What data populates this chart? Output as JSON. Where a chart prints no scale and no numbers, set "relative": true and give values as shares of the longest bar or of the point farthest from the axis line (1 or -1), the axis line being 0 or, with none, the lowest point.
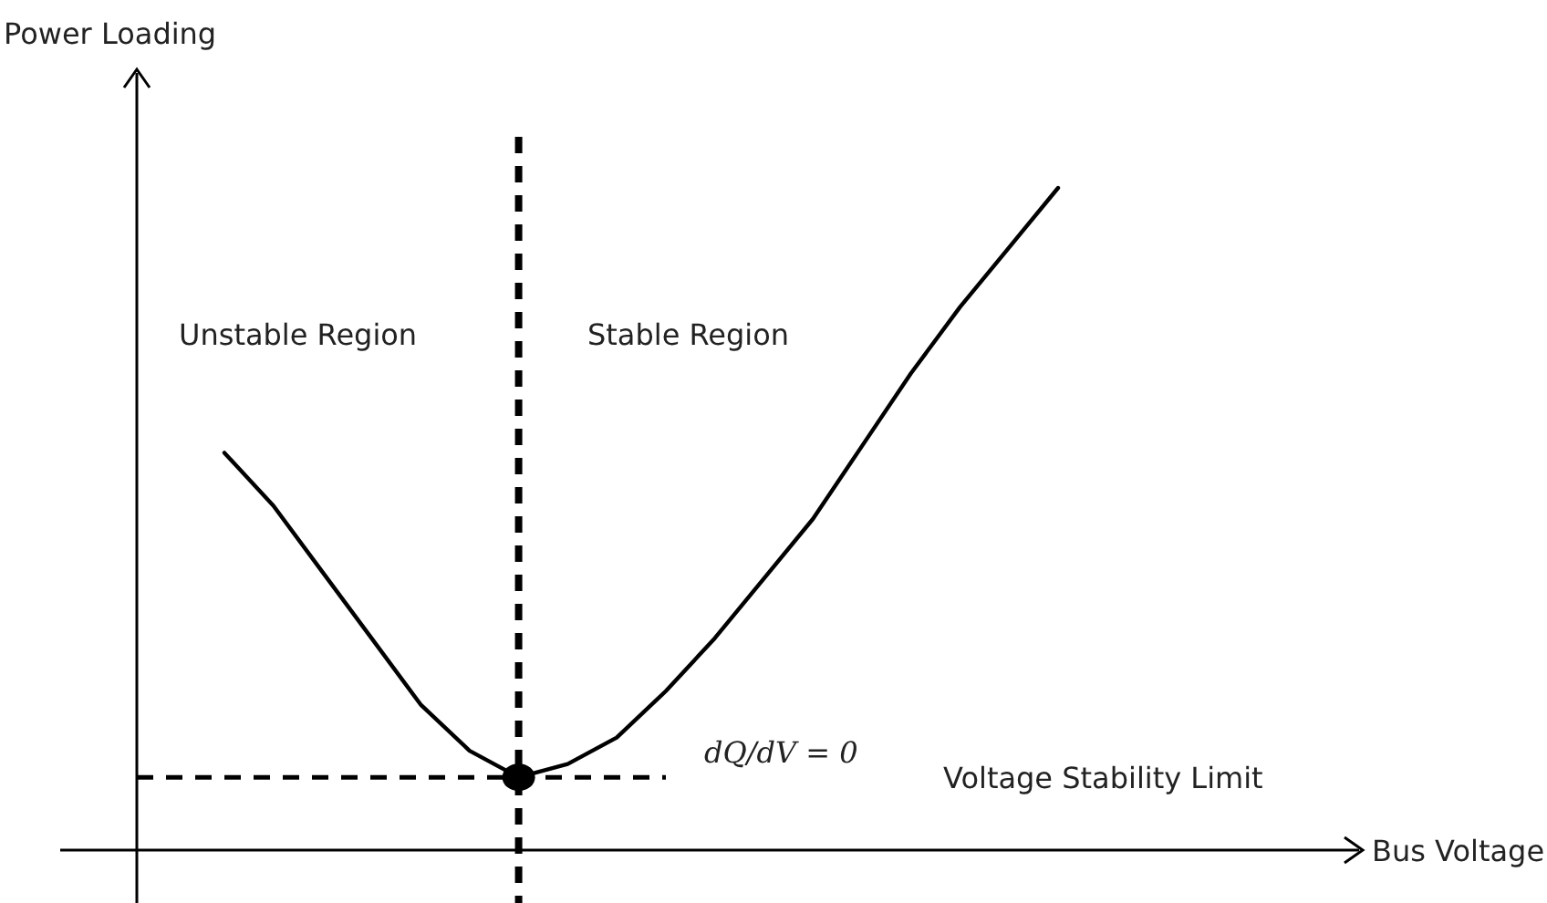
{
  "chart_data": {
    "type": "line",
    "relative": true,
    "ylabel": "Power Loading",
    "categories": [
      null,
      null,
      null,
      null,
      null,
      null,
      null,
      null,
      null,
      null,
      null,
      null,
      null,
      null,
      null,
      null,
      null,
      null
    ],
    "series": [
      {
        "color": "#000000",
        "values": [
          0.6,
          0.52,
          0.42,
          0.32,
          0.22,
          0.15,
          0.11,
          0.13,
          0.17,
          0.24,
          0.32,
          0.41,
          0.5,
          0.61,
          0.72,
          0.82,
          0.91,
          1
        ]
      }
    ],
    "ref_lines": [
      {
        "axis": "y",
        "value": 0.11,
        "label": "Voltage Stability Limit",
        "color": "#000000",
        "line_style": "dashed"
      }
    ],
    "annotations": [
      "Unstable Region",
      "Stable Region",
      "dQ/dV = 0",
      "Bus Voltage"
    ]
  }
}
